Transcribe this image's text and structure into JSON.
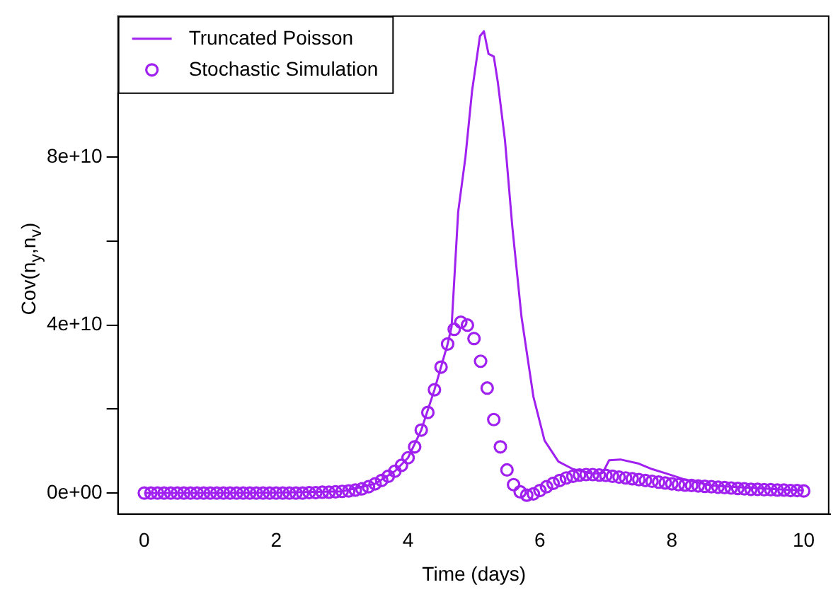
{
  "chart_data": {
    "type": "scatter",
    "xlabel": "Time (days)",
    "ylabel": "Cov(n$_{y}$,n$_{v}$)",
    "xlim": [
      -0.4,
      10.4
    ],
    "xticks": [
      0,
      2,
      4,
      6,
      8,
      10
    ],
    "ylim": [
      -5000000000.0,
      113600000000.0
    ],
    "yticks": [
      {
        "value": 0,
        "label": "0e+00"
      },
      {
        "value": 20000000000.0,
        "label": null
      },
      {
        "value": 40000000000.0,
        "label": "4e+10"
      },
      {
        "value": 60000000000.0,
        "label": null
      },
      {
        "value": 80000000000.0,
        "label": "8e+10"
      }
    ],
    "grid": false,
    "legend": "top left",
    "series": [
      {
        "name": "Truncated Poisson",
        "type": "line",
        "marker": "none",
        "line_style": "solid",
        "color": "#a020f0",
        "x": [
          0,
          1,
          2,
          3,
          3.5,
          3.8,
          4.0,
          4.2,
          4.4,
          4.6,
          4.66,
          4.76,
          4.87,
          4.97,
          5.09,
          5.15,
          5.22,
          5.3,
          5.36,
          5.47,
          5.58,
          5.72,
          5.9,
          6.07,
          6.28,
          6.5,
          6.8,
          6.95,
          7.05,
          7.22,
          7.5,
          7.7,
          7.93,
          8.2,
          8.6,
          9,
          9.5,
          10
        ],
        "values": [
          0,
          0,
          100000000.0,
          400000000.0,
          2200000000.0,
          5200000000.0,
          8400000000.0,
          15000000000.0,
          24600000000.0,
          35500000000.0,
          39600000000.0,
          67000000000.0,
          80000000000.0,
          95700000000.0,
          108800000000.0,
          110000000000.0,
          104600000000.0,
          104000000000.0,
          98000000000.0,
          84000000000.0,
          63600000000.0,
          42000000000.0,
          23000000000.0,
          12500000000.0,
          7500000000.0,
          5700000000.0,
          4600000000.0,
          4800000000.0,
          7800000000.0,
          8000000000.0,
          7000000000.0,
          5700000000.0,
          4600000000.0,
          3200000000.0,
          1800000000.0,
          1400000000.0,
          1000000000.0,
          600000000.0
        ]
      },
      {
        "name": "Stochastic Simulation",
        "type": "scatter",
        "marker": "circle",
        "color": "#a020f0",
        "x": [
          0,
          0.1,
          0.2,
          0.3,
          0.4,
          0.5,
          0.6,
          0.7,
          0.8,
          0.9,
          1,
          1.1,
          1.2,
          1.3,
          1.4,
          1.5,
          1.6,
          1.7,
          1.8,
          1.9,
          2,
          2.1,
          2.2,
          2.3,
          2.4,
          2.5,
          2.6,
          2.7,
          2.8,
          2.9,
          3,
          3.1,
          3.2,
          3.3,
          3.4,
          3.5,
          3.6,
          3.7,
          3.8,
          3.9,
          4,
          4.1,
          4.2,
          4.3,
          4.4,
          4.5,
          4.6,
          4.7,
          4.8,
          4.9,
          5,
          5.1,
          5.2,
          5.3,
          5.4,
          5.5,
          5.6,
          5.7,
          5.8,
          5.9,
          6,
          6.1,
          6.2,
          6.3,
          6.4,
          6.5,
          6.6,
          6.7,
          6.8,
          6.9,
          7,
          7.1,
          7.2,
          7.3,
          7.4,
          7.5,
          7.6,
          7.7,
          7.8,
          7.9,
          8,
          8.1,
          8.2,
          8.3,
          8.4,
          8.5,
          8.6,
          8.7,
          8.8,
          8.9,
          9,
          9.1,
          9.2,
          9.3,
          9.4,
          9.5,
          9.6,
          9.7,
          9.8,
          9.9,
          10
        ],
        "values": [
          0,
          0,
          0,
          0,
          0,
          0,
          0,
          0,
          0,
          0,
          0,
          0,
          0,
          0,
          0,
          0,
          0,
          0,
          0,
          0,
          0,
          0,
          0,
          0,
          0,
          100000000.0,
          100000000.0,
          200000000.0,
          200000000.0,
          300000000.0,
          400000000.0,
          500000000.0,
          700000000.0,
          1000000000.0,
          1500000000.0,
          2200000000.0,
          3000000000.0,
          4000000000.0,
          5200000000.0,
          6600000000.0,
          8400000000.0,
          11000000000.0,
          15000000000.0,
          19200000000.0,
          24600000000.0,
          30000000000.0,
          35500000000.0,
          39000000000.0,
          40700000000.0,
          40000000000.0,
          36800000000.0,
          31400000000.0,
          25000000000.0,
          17500000000.0,
          11000000000.0,
          5500000000.0,
          2000000000.0,
          300000000.0,
          -500000000.0,
          -200000000.0,
          600000000.0,
          1500000000.0,
          2300000000.0,
          3000000000.0,
          3600000000.0,
          4000000000.0,
          4300000000.0,
          4400000000.0,
          4400000000.0,
          4300000000.0,
          4200000000.0,
          4000000000.0,
          3800000000.0,
          3600000000.0,
          3400000000.0,
          3200000000.0,
          3000000000.0,
          2800000000.0,
          2600000000.0,
          2400000000.0,
          2200000000.0,
          2000000000.0,
          1900000000.0,
          1800000000.0,
          1700000000.0,
          1600000000.0,
          1500000000.0,
          1400000000.0,
          1300000000.0,
          1200000000.0,
          1100000000.0,
          1000000000.0,
          900000000.0,
          900000000.0,
          800000000.0,
          800000000.0,
          700000000.0,
          700000000.0,
          600000000.0,
          600000000.0,
          500000000.0
        ]
      }
    ]
  }
}
